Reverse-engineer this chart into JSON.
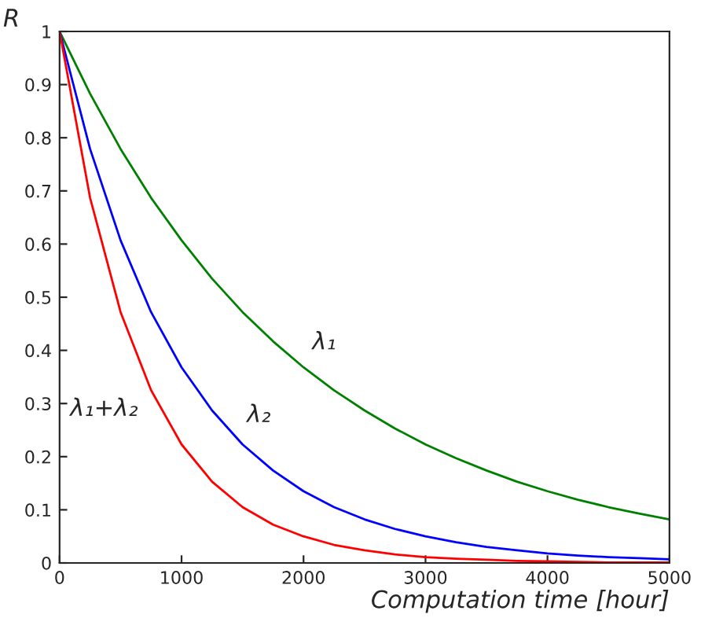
{
  "chart_data": {
    "type": "line",
    "xlabel": "Computation time [hour]",
    "ylabel": "R",
    "x": [
      0,
      250,
      500,
      750,
      1000,
      1250,
      1500,
      1750,
      2000,
      2250,
      2500,
      2750,
      3000,
      3250,
      3500,
      3750,
      4000,
      4250,
      4500,
      4750,
      5000
    ],
    "series": [
      {
        "name": "λ₁",
        "color": "#008000",
        "values": [
          1,
          0.883,
          0.779,
          0.687,
          0.607,
          0.535,
          0.472,
          0.417,
          0.368,
          0.325,
          0.287,
          0.253,
          0.223,
          0.197,
          0.174,
          0.153,
          0.135,
          0.119,
          0.105,
          0.093,
          0.082
        ]
      },
      {
        "name": "λ₂",
        "color": "#0000ff",
        "values": [
          1,
          0.779,
          0.607,
          0.472,
          0.368,
          0.287,
          0.223,
          0.174,
          0.135,
          0.105,
          0.082,
          0.064,
          0.05,
          0.039,
          0.03,
          0.024,
          0.018,
          0.014,
          0.011,
          0.009,
          0.007
        ]
      },
      {
        "name": "λ₁+λ₂",
        "color": "#ff0000",
        "values": [
          1,
          0.687,
          0.472,
          0.325,
          0.223,
          0.153,
          0.105,
          0.072,
          0.05,
          0.034,
          0.024,
          0.016,
          0.011,
          0.008,
          0.006,
          0.004,
          0.003,
          0.002,
          0.001,
          0.001,
          0.001
        ]
      }
    ],
    "xlim": [
      0,
      5000
    ],
    "ylim": [
      0,
      1
    ],
    "xticks": [
      0,
      1000,
      2000,
      3000,
      4000,
      5000
    ],
    "yticks": [
      0,
      0.1,
      0.2,
      0.3,
      0.4,
      0.5,
      0.6,
      0.7,
      0.8,
      0.9,
      1
    ],
    "grid": false,
    "legend": false
  }
}
